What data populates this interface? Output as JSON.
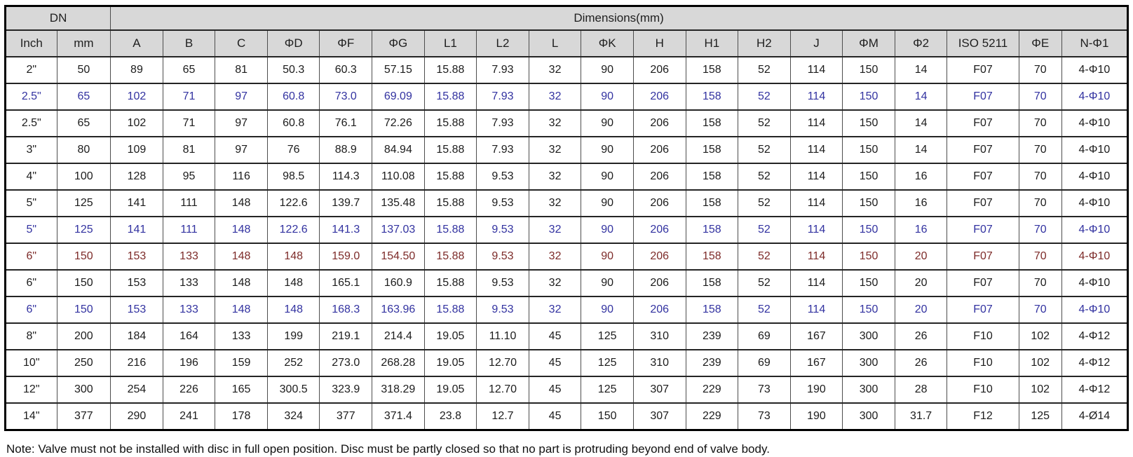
{
  "colors": {
    "blue": "#3232a0",
    "dark_red": "#7d2b29",
    "header_bg": "#d8d8d8"
  },
  "table": {
    "header_groups": [
      {
        "label": "DN",
        "colspan": 2
      },
      {
        "label": "Dimensions(mm)",
        "colspan": 19
      }
    ],
    "columns": [
      "Inch",
      "mm",
      "A",
      "B",
      "C",
      "ΦD",
      "ΦF",
      "ΦG",
      "L1",
      "L2",
      "L",
      "ΦK",
      "H",
      "H1",
      "H2",
      "J",
      "ΦM",
      "Φ2",
      "ISO 5211",
      "ΦE",
      "N-Φ1"
    ],
    "rows": [
      {
        "color": "black",
        "cells": [
          "2\"",
          "50",
          "89",
          "65",
          "81",
          "50.3",
          "60.3",
          "57.15",
          "15.88",
          "7.93",
          "32",
          "90",
          "206",
          "158",
          "52",
          "114",
          "150",
          "14",
          "F07",
          "70",
          "4-Φ10"
        ]
      },
      {
        "color": "blue",
        "cells": [
          "2.5\"",
          "65",
          "102",
          "71",
          "97",
          "60.8",
          "73.0",
          "69.09",
          "15.88",
          "7.93",
          "32",
          "90",
          "206",
          "158",
          "52",
          "114",
          "150",
          "14",
          "F07",
          "70",
          "4-Φ10"
        ]
      },
      {
        "color": "black",
        "cells": [
          "2.5\"",
          "65",
          "102",
          "71",
          "97",
          "60.8",
          "76.1",
          "72.26",
          "15.88",
          "7.93",
          "32",
          "90",
          "206",
          "158",
          "52",
          "114",
          "150",
          "14",
          "F07",
          "70",
          "4-Φ10"
        ]
      },
      {
        "color": "black",
        "cells": [
          "3\"",
          "80",
          "109",
          "81",
          "97",
          "76",
          "88.9",
          "84.94",
          "15.88",
          "7.93",
          "32",
          "90",
          "206",
          "158",
          "52",
          "114",
          "150",
          "14",
          "F07",
          "70",
          "4-Φ10"
        ]
      },
      {
        "color": "black",
        "cells": [
          "4\"",
          "100",
          "128",
          "95",
          "116",
          "98.5",
          "114.3",
          "110.08",
          "15.88",
          "9.53",
          "32",
          "90",
          "206",
          "158",
          "52",
          "114",
          "150",
          "16",
          "F07",
          "70",
          "4-Φ10"
        ]
      },
      {
        "color": "black",
        "cells": [
          "5\"",
          "125",
          "141",
          "111",
          "148",
          "122.6",
          "139.7",
          "135.48",
          "15.88",
          "9.53",
          "32",
          "90",
          "206",
          "158",
          "52",
          "114",
          "150",
          "16",
          "F07",
          "70",
          "4-Φ10"
        ]
      },
      {
        "color": "blue",
        "cells": [
          "5\"",
          "125",
          "141",
          "111",
          "148",
          "122.6",
          "141.3",
          "137.03",
          "15.88",
          "9.53",
          "32",
          "90",
          "206",
          "158",
          "52",
          "114",
          "150",
          "16",
          "F07",
          "70",
          "4-Φ10"
        ]
      },
      {
        "color": "darkred",
        "cells": [
          "6\"",
          "150",
          "153",
          "133",
          "148",
          "148",
          "159.0",
          "154.50",
          "15.88",
          "9.53",
          "32",
          "90",
          "206",
          "158",
          "52",
          "114",
          "150",
          "20",
          "F07",
          "70",
          "4-Φ10"
        ]
      },
      {
        "color": "black",
        "cells": [
          "6\"",
          "150",
          "153",
          "133",
          "148",
          "148",
          "165.1",
          "160.9",
          "15.88",
          "9.53",
          "32",
          "90",
          "206",
          "158",
          "52",
          "114",
          "150",
          "20",
          "F07",
          "70",
          "4-Φ10"
        ]
      },
      {
        "color": "blue",
        "cells": [
          "6\"",
          "150",
          "153",
          "133",
          "148",
          "148",
          "168.3",
          "163.96",
          "15.88",
          "9.53",
          "32",
          "90",
          "206",
          "158",
          "52",
          "114",
          "150",
          "20",
          "F07",
          "70",
          "4-Φ10"
        ]
      },
      {
        "color": "black",
        "cells": [
          "8\"",
          "200",
          "184",
          "164",
          "133",
          "199",
          "219.1",
          "214.4",
          "19.05",
          "11.10",
          "45",
          "125",
          "310",
          "239",
          "69",
          "167",
          "300",
          "26",
          "F10",
          "102",
          "4-Φ12"
        ]
      },
      {
        "color": "black",
        "cells": [
          "10\"",
          "250",
          "216",
          "196",
          "159",
          "252",
          "273.0",
          "268.28",
          "19.05",
          "12.70",
          "45",
          "125",
          "310",
          "239",
          "69",
          "167",
          "300",
          "26",
          "F10",
          "102",
          "4-Φ12"
        ]
      },
      {
        "color": "black",
        "cells": [
          "12\"",
          "300",
          "254",
          "226",
          "165",
          "300.5",
          "323.9",
          "318.29",
          "19.05",
          "12.70",
          "45",
          "125",
          "307",
          "229",
          "73",
          "190",
          "300",
          "28",
          "F10",
          "102",
          "4-Φ12"
        ]
      },
      {
        "color": "black",
        "cells": [
          "14\"",
          "377",
          "290",
          "241",
          "178",
          "324",
          "377",
          "371.4",
          "23.8",
          "12.7",
          "45",
          "150",
          "307",
          "229",
          "73",
          "190",
          "300",
          "31.7",
          "F12",
          "125",
          "4-Ø14"
        ]
      }
    ]
  },
  "note": "Note: Valve must not be installed with disc in full open position. Disc must be partly closed so that no part is protruding beyond end of valve body."
}
